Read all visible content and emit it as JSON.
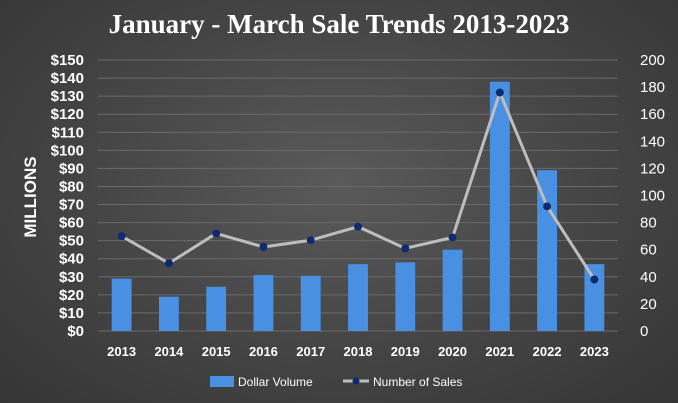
{
  "chart_data": {
    "type": "bar",
    "title": "January - March Sale Trends 2013-2023",
    "ylabel": "MILLIONS",
    "categories": [
      "2013",
      "2014",
      "2015",
      "2016",
      "2017",
      "2018",
      "2019",
      "2020",
      "2021",
      "2022",
      "2023"
    ],
    "ylim": [
      0,
      150
    ],
    "y_ticks": [
      "$0",
      "$10",
      "$20",
      "$30",
      "$40",
      "$50",
      "$60",
      "$70",
      "$80",
      "$90",
      "$100",
      "$110",
      "$120",
      "$130",
      "$140",
      "$150"
    ],
    "y2lim": [
      0,
      200
    ],
    "y2_ticks": [
      "0",
      "20",
      "40",
      "60",
      "80",
      "100",
      "120",
      "140",
      "160",
      "180",
      "200"
    ],
    "grid": true,
    "legend_position": "bottom",
    "series": [
      {
        "name": "Dollar Volume",
        "type": "bar",
        "axis": "left",
        "color": "#4a90e2",
        "values": [
          29,
          19,
          24.5,
          31,
          30.5,
          37,
          38,
          45,
          138,
          89,
          37
        ]
      },
      {
        "name": "Number of Sales",
        "type": "line",
        "axis": "right",
        "color": "#bdbdbd",
        "marker_color": "#0f2a6e",
        "values": [
          70,
          50,
          72,
          62,
          67,
          77,
          61,
          69,
          176,
          92,
          38
        ]
      }
    ]
  }
}
